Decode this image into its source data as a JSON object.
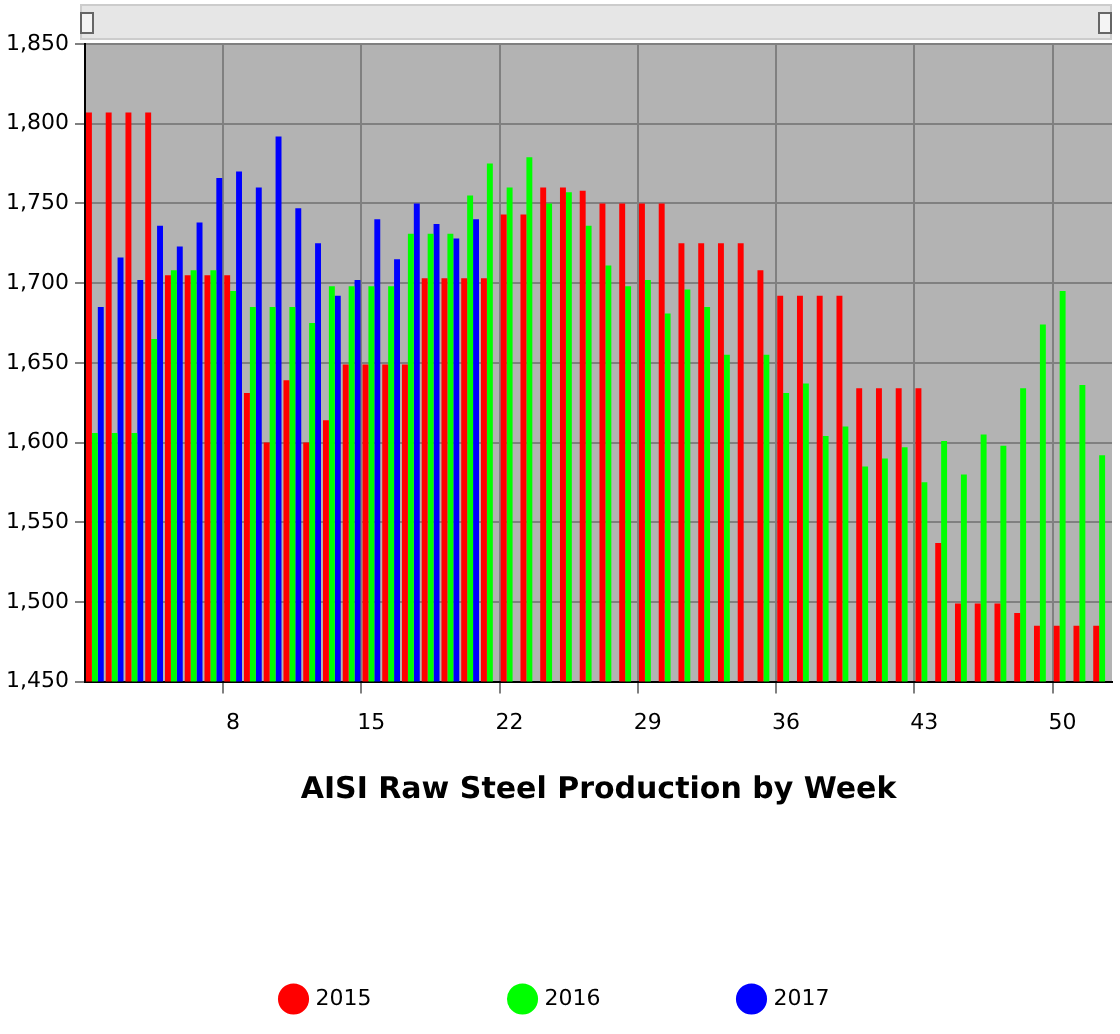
{
  "chart_data": {
    "type": "bar",
    "xlabel": "AISI Raw Steel Production by Week",
    "categories": [
      null,
      null,
      null,
      null,
      null,
      null,
      null,
      "8",
      null,
      null,
      null,
      null,
      null,
      null,
      "15",
      null,
      null,
      null,
      null,
      null,
      null,
      "22",
      null,
      null,
      null,
      null,
      null,
      null,
      "29",
      null,
      null,
      null,
      null,
      null,
      null,
      "36",
      null,
      null,
      null,
      null,
      null,
      null,
      "43",
      null,
      null,
      null,
      null,
      null,
      null,
      "50",
      null,
      null
    ],
    "series": [
      {
        "name": "2015",
        "color": "#ff0000",
        "values": [
          1807,
          1807,
          1807,
          1807,
          1705,
          1705,
          1705,
          1705,
          1631,
          1600,
          1639,
          1600,
          1614,
          1649,
          1649,
          1649,
          1649,
          1703,
          1703,
          1703,
          1703,
          1743,
          1743,
          1760,
          1760,
          1758,
          1750,
          1750,
          1750,
          1750,
          1725,
          1725,
          1725,
          1725,
          1708,
          1692,
          1692,
          1692,
          1692,
          1634,
          1634,
          1634,
          1634,
          1537,
          1499,
          1499,
          1499,
          1493,
          1485,
          1485,
          1485,
          1485
        ]
      },
      {
        "name": "2016",
        "color": "#00ff00",
        "values": [
          1606,
          1606,
          1606,
          1665,
          1708,
          1708,
          1708,
          1695,
          1685,
          1685,
          1685,
          1675,
          1698,
          1698,
          1698,
          1698,
          1731,
          1731,
          1731,
          1755,
          1775,
          1760,
          1779,
          1750,
          1757,
          1736,
          1711,
          1698,
          1702,
          1681,
          1696,
          1685,
          1655,
          null,
          1655,
          1631,
          1637,
          1604,
          1610,
          1585,
          1590,
          1597,
          1575,
          1601,
          1580,
          1605,
          1598,
          1634,
          1674,
          1695,
          1636,
          1592
        ]
      },
      {
        "name": "2017",
        "color": "#0000ff",
        "values": [
          1685,
          1716,
          1702,
          1736,
          1723,
          1738,
          1766,
          1770,
          1760,
          1792,
          1747,
          1725,
          1692,
          1702,
          1740,
          1715,
          1750,
          1737,
          1728,
          1740,
          null,
          null,
          null,
          null,
          null,
          null,
          null,
          null,
          null,
          null,
          null,
          null,
          null,
          null,
          null,
          null,
          null,
          null,
          null,
          null,
          null,
          null,
          null,
          null,
          null,
          null,
          null,
          null,
          null,
          null,
          null,
          null
        ]
      }
    ],
    "ylim": [
      1450,
      1850
    ],
    "yticks": [
      {
        "value": 1450,
        "label": "1,450"
      },
      {
        "value": 1500,
        "label": "1,500"
      },
      {
        "value": 1550,
        "label": "1,550"
      },
      {
        "value": 1600,
        "label": "1,600"
      },
      {
        "value": 1650,
        "label": "1,650"
      },
      {
        "value": 1700,
        "label": "1,700"
      },
      {
        "value": 1750,
        "label": "1,750"
      },
      {
        "value": 1800,
        "label": "1,800"
      },
      {
        "value": 1850,
        "label": "1,850"
      }
    ],
    "grid": true,
    "legend": "bottom"
  }
}
